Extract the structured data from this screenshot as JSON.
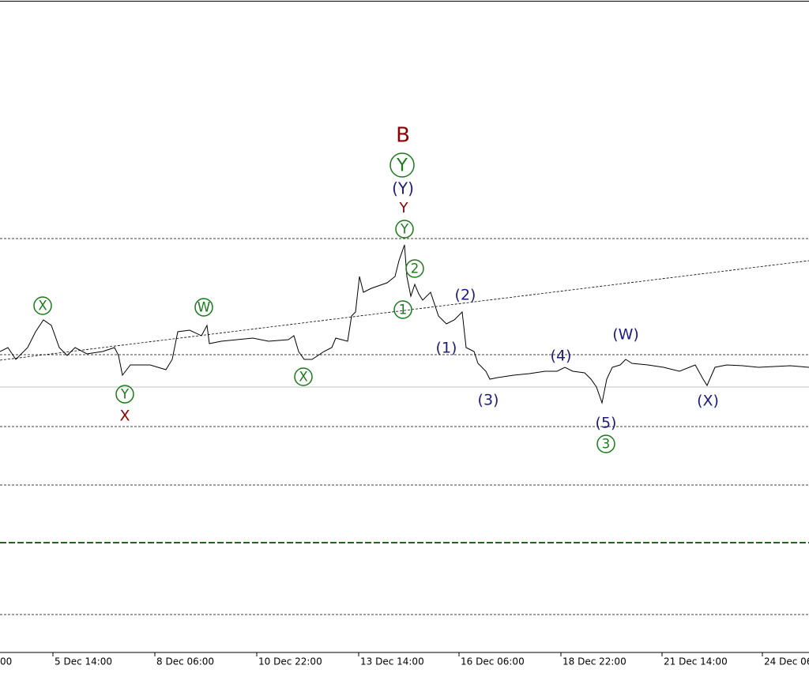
{
  "x_axis_labels": [
    "00",
    "5 Dec 14:00",
    "8 Dec 06:00",
    "10 Dec 22:00",
    "13 Dec 14:00",
    "16 Dec 06:00",
    "18 Dec 22:00",
    "21 Dec 14:00",
    "24 Dec 06"
  ],
  "wave_labels": [
    "B",
    "Y",
    "(Y)",
    "Y",
    "Y",
    "2",
    "1",
    "(2)",
    "(1)",
    "(3)",
    "(4)",
    "(W)",
    "(5)",
    "3",
    "(X)",
    "X",
    "W",
    "X",
    "Y",
    "X"
  ]
}
